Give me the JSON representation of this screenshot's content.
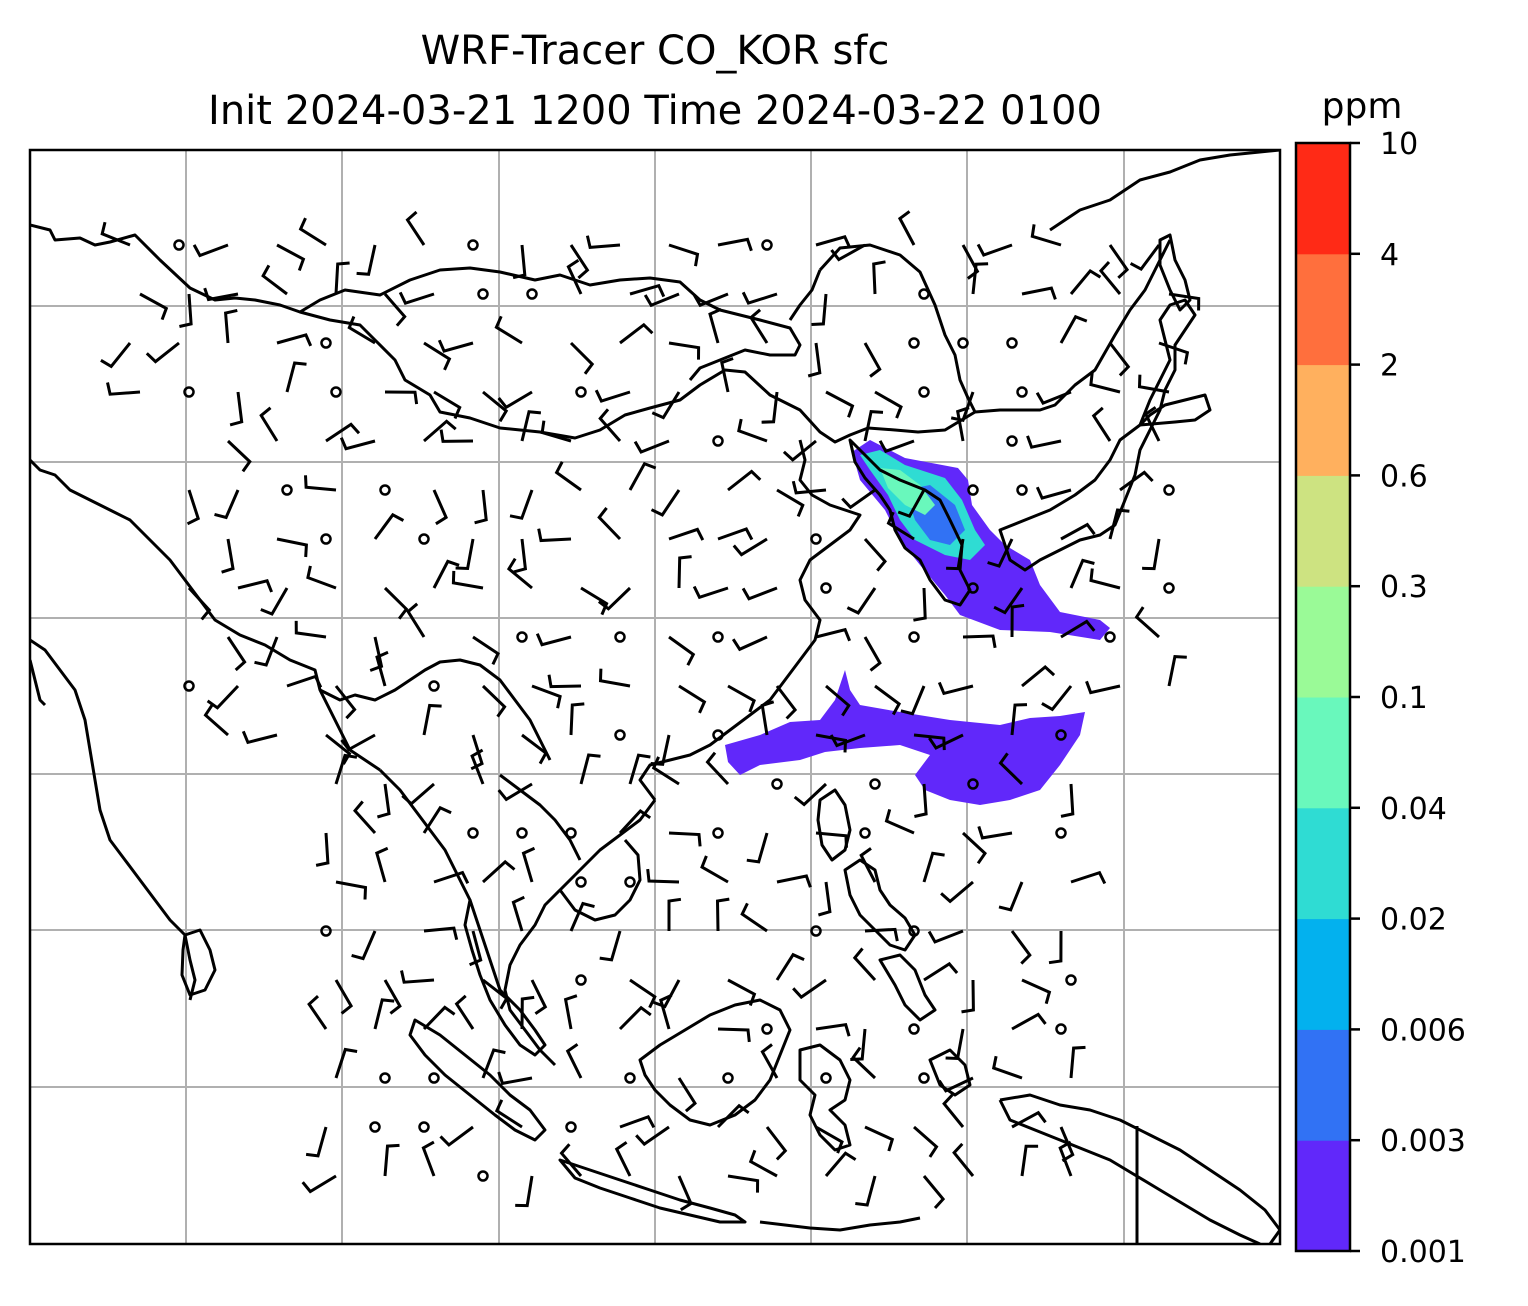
{
  "title": {
    "line1": "WRF-Tracer CO_KOR sfc",
    "line2": "Init 2024-03-21 1200 Time 2024-03-22 0100"
  },
  "colorbar": {
    "unit": "ppm",
    "levels": [
      "0.001",
      "0.003",
      "0.006",
      "0.02",
      "0.04",
      "0.1",
      "0.3",
      "0.6",
      "2",
      "4",
      "10"
    ],
    "colors": [
      "#6128fa",
      "#3172f4",
      "#03b1ee",
      "#2fdcd3",
      "#69f8bc",
      "#9afa97",
      "#cde381",
      "#ffb05e",
      "#ff6f3d",
      "#ff2a16"
    ]
  },
  "colors": {
    "coast": "#000000",
    "grid": "#b0b0b0",
    "barb": "#000000"
  }
}
